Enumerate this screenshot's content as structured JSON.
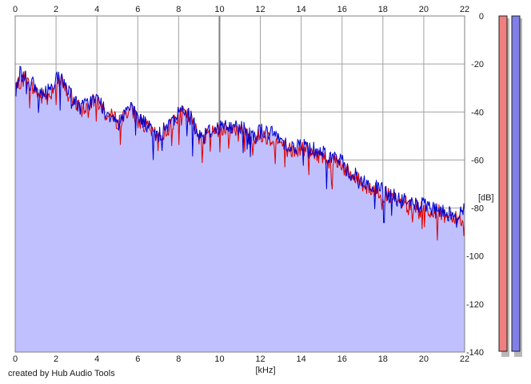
{
  "credit": "created by Hub Audio Tools",
  "colors": {
    "background": "#ffffff",
    "plot_fill": "#c0c0ff",
    "grid": "#a0a0a0",
    "grid_major": "#808080",
    "left_channel": "#e00000",
    "right_channel": "#0000cc",
    "left_meter_fill": "#f08080",
    "right_meter_fill": "#8080e8"
  },
  "chart_data": {
    "type": "area",
    "title": "",
    "xlabel": "[kHz]",
    "ylabel": "[dB]",
    "xlim": [
      0,
      22
    ],
    "ylim": [
      -140,
      0
    ],
    "x_ticks": [
      0,
      2,
      4,
      6,
      8,
      10,
      12,
      14,
      16,
      18,
      20,
      22
    ],
    "y_ticks": [
      0,
      -20,
      -40,
      -60,
      -80,
      -100,
      -120,
      -140
    ],
    "x_tick_labels": [
      "0",
      "2",
      "4",
      "6",
      "8",
      "10",
      "12",
      "14",
      "16",
      "18",
      "20",
      "22"
    ],
    "y_tick_labels": [
      "0",
      "-20",
      "-40",
      "-60",
      "-80",
      "-100",
      "-120",
      "-140"
    ],
    "x_axis_position": "top and bottom",
    "y_axis_position": "right",
    "grid": true,
    "x": [
      0,
      0.25,
      0.5,
      0.75,
      1,
      1.25,
      1.5,
      1.75,
      2,
      2.25,
      2.5,
      2.75,
      3,
      3.25,
      3.5,
      3.75,
      4,
      4.25,
      4.5,
      4.75,
      5,
      5.25,
      5.5,
      5.75,
      6,
      6.25,
      6.5,
      6.75,
      7,
      7.25,
      7.5,
      7.75,
      8,
      8.25,
      8.5,
      8.75,
      9,
      9.25,
      9.5,
      9.75,
      10,
      10.25,
      10.5,
      10.75,
      11,
      11.25,
      11.5,
      11.75,
      12,
      12.25,
      12.5,
      12.75,
      13,
      13.25,
      13.5,
      13.75,
      14,
      14.25,
      14.5,
      14.75,
      15,
      15.25,
      15.5,
      15.75,
      16,
      16.25,
      16.5,
      16.75,
      17,
      17.25,
      17.5,
      17.75,
      18,
      18.25,
      18.5,
      18.75,
      19,
      19.25,
      19.5,
      19.75,
      20,
      20.25,
      20.5,
      20.75,
      21,
      21.25,
      21.5,
      21.75,
      22
    ],
    "series": [
      {
        "color": "#e00000",
        "values": [
          -32,
          -27,
          -26,
          -30,
          -31,
          -34,
          -33,
          -32,
          -27,
          -28,
          -31,
          -33,
          -38,
          -39,
          -38,
          -36,
          -36,
          -38,
          -42,
          -42,
          -44,
          -43,
          -39,
          -40,
          -42,
          -45,
          -47,
          -49,
          -51,
          -49,
          -47,
          -44,
          -40,
          -41,
          -42,
          -46,
          -50,
          -51,
          -49,
          -48,
          -47,
          -47,
          -48,
          -47,
          -48,
          -48,
          -50,
          -52,
          -49,
          -50,
          -51,
          -52,
          -53,
          -55,
          -56,
          -57,
          -55,
          -56,
          -57,
          -58,
          -58,
          -60,
          -60,
          -60,
          -62,
          -65,
          -67,
          -68,
          -70,
          -71,
          -72,
          -73,
          -74,
          -75,
          -76,
          -78,
          -78,
          -79,
          -79,
          -80,
          -80,
          -81,
          -82,
          -82,
          -83,
          -83,
          -83,
          -84,
          -89
        ]
      },
      {
        "color": "#0000cc",
        "values": [
          -32,
          -23,
          -26,
          -28,
          -30,
          -33,
          -32,
          -30,
          -25,
          -27,
          -29,
          -32,
          -37,
          -38,
          -37,
          -35,
          -35,
          -37,
          -41,
          -41,
          -43,
          -42,
          -38,
          -40,
          -42,
          -44,
          -46,
          -48,
          -50,
          -48,
          -46,
          -44,
          -39,
          -40,
          -41,
          -45,
          -49,
          -50,
          -48,
          -47,
          -46,
          -46,
          -47,
          -46,
          -46,
          -47,
          -48,
          -50,
          -48,
          -48,
          -49,
          -50,
          -51,
          -53,
          -54,
          -55,
          -53,
          -54,
          -55,
          -56,
          -56,
          -58,
          -59,
          -59,
          -61,
          -64,
          -66,
          -67,
          -69,
          -70,
          -71,
          -72,
          -73,
          -74,
          -75,
          -77,
          -77,
          -78,
          -78,
          -79,
          -79,
          -80,
          -81,
          -81,
          -82,
          -82,
          -82,
          -83,
          -80
        ]
      }
    ],
    "meters": [
      {
        "color": "#f08080"
      },
      {
        "color": "#8080e8"
      }
    ]
  }
}
